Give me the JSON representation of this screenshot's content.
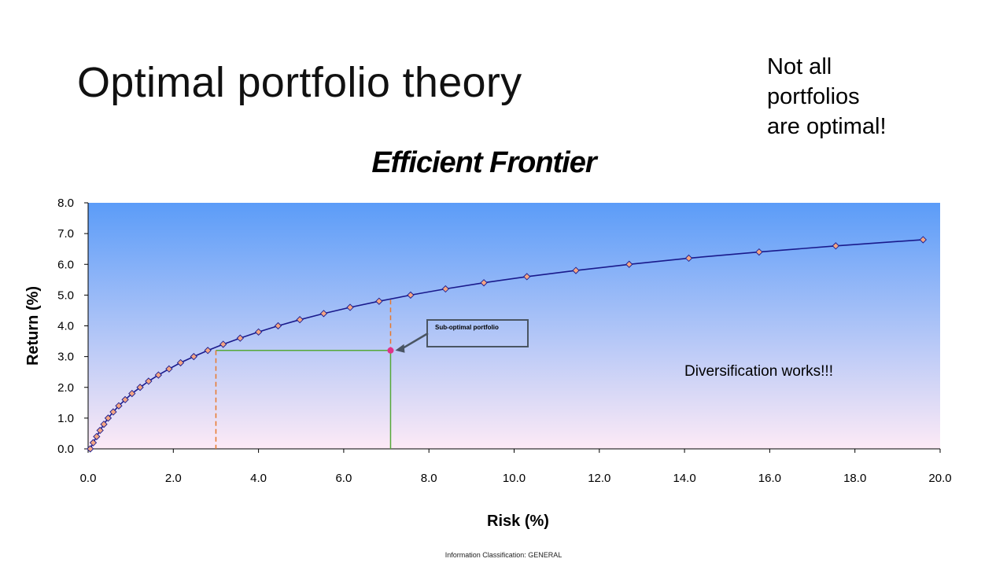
{
  "slide": {
    "title": "Optimal portfolio theory",
    "side_note": [
      "Not all",
      "portfolios",
      "are optimal!"
    ],
    "footer": "Information Classification: GENERAL"
  },
  "chart_data": {
    "type": "line",
    "title": "Efficient Frontier",
    "xlabel": "Risk (%)",
    "ylabel": "Return (%)",
    "xlim": [
      0,
      20
    ],
    "ylim": [
      0,
      8
    ],
    "x_ticks": [
      "0.0",
      "2.0",
      "4.0",
      "6.0",
      "8.0",
      "10.0",
      "12.0",
      "14.0",
      "16.0",
      "18.0",
      "20.0"
    ],
    "y_ticks": [
      "0.0",
      "1.0",
      "2.0",
      "3.0",
      "4.0",
      "5.0",
      "6.0",
      "7.0",
      "8.0"
    ],
    "series": [
      {
        "marker": "diamond",
        "line_color": "#1a1a8c",
        "marker_color": "#f4a582",
        "x": [
          0.05,
          0.12,
          0.2,
          0.28,
          0.37,
          0.47,
          0.59,
          0.72,
          0.87,
          1.03,
          1.22,
          1.42,
          1.65,
          1.9,
          2.17,
          2.48,
          2.81,
          3.17,
          3.57,
          4.0,
          4.46,
          4.97,
          5.53,
          6.15,
          6.83,
          7.57,
          8.39,
          9.29,
          10.3,
          11.45,
          12.7,
          14.1,
          15.75,
          17.55,
          19.6
        ],
        "y": [
          0.0,
          0.2,
          0.4,
          0.6,
          0.8,
          1.0,
          1.2,
          1.4,
          1.6,
          1.8,
          2.0,
          2.2,
          2.4,
          2.6,
          2.8,
          3.0,
          3.2,
          3.4,
          3.6,
          3.8,
          4.0,
          4.2,
          4.4,
          4.6,
          4.8,
          5.0,
          5.2,
          5.4,
          5.6,
          5.8,
          6.0,
          6.2,
          6.4,
          6.6,
          6.8
        ]
      }
    ],
    "highlight_point": {
      "x": 7.1,
      "y": 3.2,
      "color": "#e0338a"
    },
    "reference_lines": {
      "horizontal_return": 3.2,
      "horizontal_from_risk": 3.0,
      "horizontal_to_risk": 7.1,
      "vertical_min_risk": 3.0,
      "vertical_suboptimal_risk": 7.1,
      "vertical_suboptimal_top_return": 4.85
    },
    "annotations": {
      "callout": "Sub-optimal portfolio",
      "note": "Diversification works!!!"
    },
    "background_gradient": [
      "#5b9cf8",
      "#fdeaf6"
    ],
    "grid": false,
    "legend": "none"
  }
}
